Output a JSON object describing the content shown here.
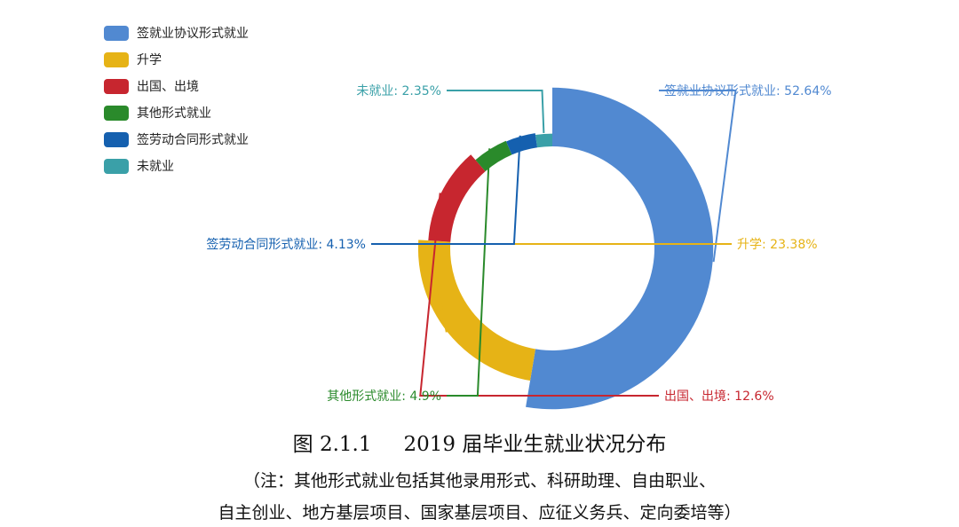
{
  "chart_data": {
    "type": "pie",
    "variant": "donut",
    "legend_placement": "top-left",
    "slices": [
      {
        "name": "签就业协议形式就业",
        "value": 52.64,
        "label": "签就业协议形式就业: 52.64%",
        "color": "#5189D1"
      },
      {
        "name": "升学",
        "value": 23.38,
        "label": "升学: 23.38%",
        "color": "#E6B316"
      },
      {
        "name": "出国、出境",
        "value": 12.6,
        "label": "出国、出境: 12.6%",
        "color": "#C7262F"
      },
      {
        "name": "其他形式就业",
        "value": 4.9,
        "label": "其他形式就业: 4.9%",
        "color": "#2A8A2B"
      },
      {
        "name": "签劳动合同形式就业",
        "value": 4.13,
        "label": "签劳动合同形式就业: 4.13%",
        "color": "#1560AF"
      },
      {
        "name": "未就业",
        "value": 2.35,
        "label": "未就业: 2.35%",
        "color": "#3AA0A8"
      }
    ]
  },
  "caption": {
    "figure_number": "图 2.1.1",
    "title": "2019 届毕业生就业状况分布",
    "note_line1": "（注：其他形式就业包括其他录用形式、科研助理、自由职业、",
    "note_line2": "自主创业、地方基层项目、国家基层项目、应征义务兵、定向委培等）"
  }
}
